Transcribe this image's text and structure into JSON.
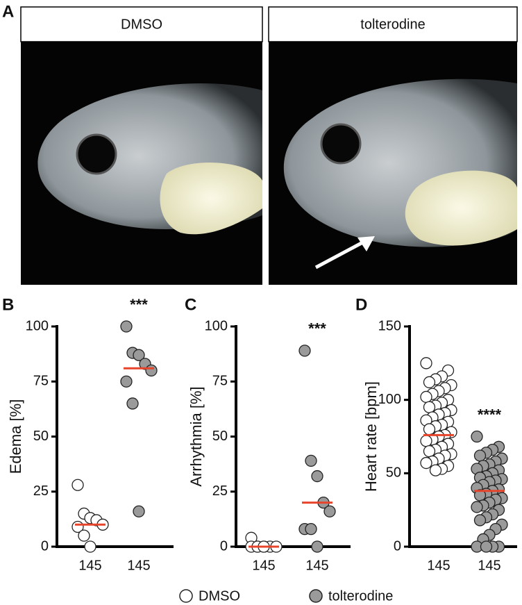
{
  "figure": {
    "panel_letters": [
      "A",
      "B",
      "C",
      "D"
    ],
    "photo_labels": [
      "DMSO",
      "tolterodine"
    ]
  },
  "chart_data": [
    {
      "type": "strip",
      "y_label": "Edema [%]",
      "categories": [
        "145",
        "145"
      ],
      "annotation": "***",
      "ylim": [
        0,
        100
      ],
      "yticks": [
        0,
        25,
        50,
        75,
        100
      ],
      "mean_color": "#e8442c",
      "series": [
        {
          "name": "DMSO",
          "color": "#ffffff",
          "values": [
            28,
            15,
            13,
            12,
            10,
            9,
            5,
            0
          ],
          "mean": 10
        },
        {
          "name": "tolterodine",
          "color": "#9a9a9a",
          "values": [
            100,
            88,
            87,
            83,
            80,
            75,
            65,
            16
          ],
          "mean": 81
        }
      ]
    },
    {
      "type": "strip",
      "y_label": "Arrhythmia [%]",
      "categories": [
        "145",
        "145"
      ],
      "annotation": "***",
      "ylim": [
        0,
        100
      ],
      "yticks": [
        0,
        25,
        50,
        75,
        100
      ],
      "mean_color": "#e8442c",
      "series": [
        {
          "name": "DMSO",
          "color": "#ffffff",
          "values": [
            4,
            0,
            0,
            0,
            0,
            0,
            0,
            0
          ],
          "mean": 0
        },
        {
          "name": "tolterodine",
          "color": "#9a9a9a",
          "values": [
            89,
            39,
            32,
            20,
            16,
            8,
            8,
            0
          ],
          "mean": 20
        }
      ]
    },
    {
      "type": "strip",
      "y_label": "Heart rate [bpm]",
      "categories": [
        "145",
        "145"
      ],
      "annotation": "****",
      "ylim": [
        0,
        150
      ],
      "yticks": [
        0,
        50,
        100,
        150
      ],
      "mean_color": "#e8442c",
      "series": [
        {
          "name": "DMSO",
          "color": "#ffffff",
          "values": [
            125,
            120,
            116,
            114,
            112,
            110,
            108,
            106,
            104,
            102,
            100,
            98,
            96,
            95,
            93,
            91,
            90,
            88,
            86,
            85,
            83,
            82,
            80,
            78,
            76,
            75,
            73,
            72,
            70,
            68,
            66,
            65,
            63,
            62,
            60,
            58,
            57,
            55,
            53,
            52
          ],
          "mean": 76
        },
        {
          "name": "tolterodine",
          "color": "#9a9a9a",
          "values": [
            75,
            68,
            66,
            64,
            62,
            60,
            58,
            56,
            55,
            53,
            52,
            50,
            48,
            47,
            46,
            45,
            44,
            42,
            40,
            39,
            38,
            36,
            35,
            33,
            32,
            30,
            28,
            27,
            25,
            22,
            20,
            18,
            15,
            12,
            8,
            5,
            0,
            0,
            0,
            0
          ],
          "mean": 38
        }
      ]
    }
  ]
}
